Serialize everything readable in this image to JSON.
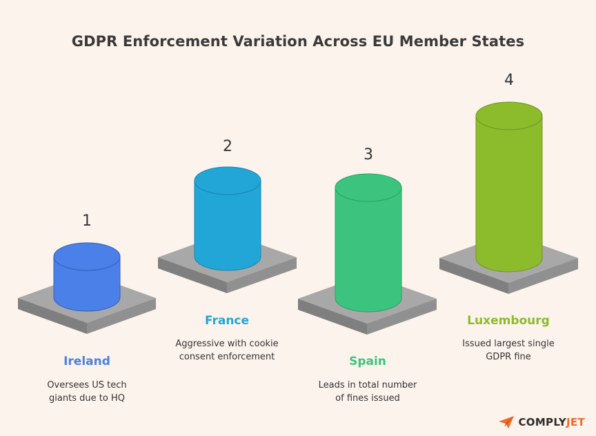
{
  "title": "GDPR Enforcement Variation Across EU Member States",
  "items": [
    {
      "rank": "1",
      "country": "Ireland",
      "desc_line1": "Oversees US tech",
      "desc_line2": "giants due to HQ",
      "color": "#4a80e8"
    },
    {
      "rank": "2",
      "country": "France",
      "desc_line1": "Aggressive with cookie",
      "desc_line2": "consent enforcement",
      "color": "#22a6d8"
    },
    {
      "rank": "3",
      "country": "Spain",
      "desc_line1": "Leads in total number",
      "desc_line2": "of fines issued",
      "color": "#3cc47e"
    },
    {
      "rank": "4",
      "country": "Luxembourg",
      "desc_line1": "Issued largest single",
      "desc_line2": "GDPR fine",
      "color": "#8cbb2c"
    }
  ],
  "brand": {
    "part1": "COMPLY",
    "part2": "JET",
    "color1": "#2b2b2b",
    "color2": "#f26a2a"
  }
}
